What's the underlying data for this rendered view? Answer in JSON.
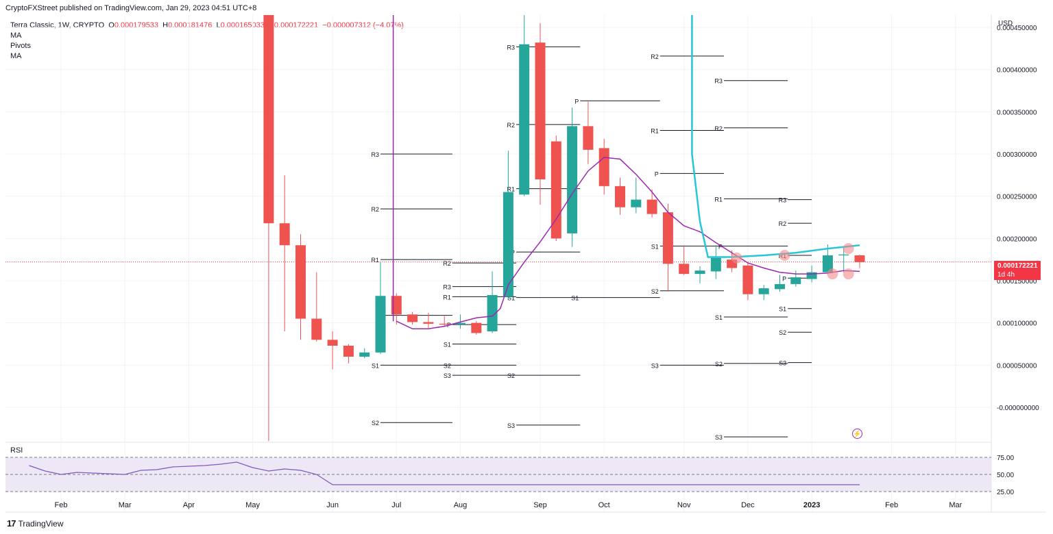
{
  "header": {
    "publisher_line": "CryptoFXStreet published on TradingView.com, Jan 29, 2023 04:51 UTC+8"
  },
  "legend": {
    "symbol": "Terra Classic, 1W, CRYPTO",
    "o_label": "O",
    "o_value": "0.000179533",
    "h_label": "H",
    "h_value": "0.000181476",
    "l_label": "L",
    "l_value": "0.000165033",
    "c_label": "C",
    "c_value": "0.000172221",
    "change": "−0.000007312 (−4.07%)",
    "indicators": [
      "MA",
      "Pivots",
      "MA"
    ]
  },
  "price_axis": {
    "currency": "USD",
    "last_price": "0.000172221",
    "countdown": "1d 4h"
  },
  "rsi": {
    "title": "RSI",
    "ticks": [
      "75.00",
      "50.00",
      "25.00"
    ]
  },
  "footer": {
    "brand": "TradingView"
  },
  "colors": {
    "up": "#26a69a",
    "down": "#ef5350",
    "ma_purple": "#9c27b0",
    "ma_cyan": "#26c6da",
    "rsi_line": "#7e57c2",
    "rsi_band": "#ede7f6"
  },
  "chart_data": {
    "type": "candlestick",
    "title": "Terra Classic, 1W, CRYPTO",
    "ylabel": "USD",
    "ylim": [
      -4e-05,
      0.00047
    ],
    "y_ticks": [
      "0.000450000",
      "0.000400000",
      "0.000350000",
      "0.000300000",
      "0.000250000",
      "0.000200000",
      "0.000150000",
      "0.000100000",
      "0.000050000",
      "-0.000000000"
    ],
    "y_tick_values": [
      0.00045,
      0.0004,
      0.00035,
      0.0003,
      0.00025,
      0.0002,
      0.00015,
      0.0001,
      5e-05,
      0
    ],
    "x_labels": [
      "Feb",
      "Mar",
      "Apr",
      "May",
      "Jun",
      "Jul",
      "Aug",
      "Sep",
      "Oct",
      "Nov",
      "Dec",
      "2023",
      "Feb",
      "Mar"
    ],
    "x_label_weeks": [
      0,
      4,
      8,
      12,
      17,
      21,
      25,
      30,
      34,
      39,
      43,
      47,
      52,
      56
    ],
    "candles": [
      {
        "w": 13,
        "o": 0.00047,
        "h": 0.00047,
        "l": -4e-05,
        "c": 0.000218
      },
      {
        "w": 14,
        "o": 0.000218,
        "h": 0.000275,
        "l": 9e-05,
        "c": 0.000192
      },
      {
        "w": 15,
        "o": 0.000192,
        "h": 0.000205,
        "l": 8e-05,
        "c": 0.000105
      },
      {
        "w": 16,
        "o": 0.000105,
        "h": 0.00016,
        "l": 7.8e-05,
        "c": 8e-05
      },
      {
        "w": 17,
        "o": 8e-05,
        "h": 9e-05,
        "l": 4.5e-05,
        "c": 7.3e-05
      },
      {
        "w": 18,
        "o": 7.3e-05,
        "h": 7.5e-05,
        "l": 5.2e-05,
        "c": 6e-05
      },
      {
        "w": 19,
        "o": 6e-05,
        "h": 7e-05,
        "l": 5.8e-05,
        "c": 6.5e-05
      },
      {
        "w": 20,
        "o": 6.5e-05,
        "h": 0.000172,
        "l": 6.3e-05,
        "c": 0.000132
      },
      {
        "w": 21,
        "o": 0.000132,
        "h": 0.000135,
        "l": 9.8e-05,
        "c": 0.00011
      },
      {
        "w": 22,
        "o": 0.00011,
        "h": 0.000113,
        "l": 9.8e-05,
        "c": 0.000101
      },
      {
        "w": 23,
        "o": 0.000101,
        "h": 0.000112,
        "l": 9.4e-05,
        "c": 9.9e-05
      },
      {
        "w": 24,
        "o": 9.9e-05,
        "h": 0.000108,
        "l": 9.6e-05,
        "c": 9.8e-05
      },
      {
        "w": 25,
        "o": 9.8e-05,
        "h": 0.00011,
        "l": 9.3e-05,
        "c": 0.0001
      },
      {
        "w": 26,
        "o": 0.0001,
        "h": 0.000102,
        "l": 8.6e-05,
        "c": 8.8e-05
      },
      {
        "w": 27,
        "o": 9e-05,
        "h": 0.000161,
        "l": 8.8e-05,
        "c": 0.000133
      },
      {
        "w": 28,
        "o": 0.000131,
        "h": 0.000304,
        "l": 0.000128,
        "c": 0.000255
      },
      {
        "w": 29,
        "o": 0.000252,
        "h": 0.00047,
        "l": 0.00025,
        "c": 0.00043
      },
      {
        "w": 30,
        "o": 0.000432,
        "h": 0.000455,
        "l": 0.00024,
        "c": 0.00027
      },
      {
        "w": 31,
        "o": 0.000315,
        "h": 0.000322,
        "l": 0.000197,
        "c": 0.0002
      },
      {
        "w": 32,
        "o": 0.000206,
        "h": 0.000355,
        "l": 0.00019,
        "c": 0.000333
      },
      {
        "w": 33,
        "o": 0.000333,
        "h": 0.000362,
        "l": 0.000288,
        "c": 0.000305
      },
      {
        "w": 34,
        "o": 0.000307,
        "h": 0.000318,
        "l": 0.000252,
        "c": 0.000262
      },
      {
        "w": 35,
        "o": 0.000262,
        "h": 0.000272,
        "l": 0.000228,
        "c": 0.000237
      },
      {
        "w": 36,
        "o": 0.000237,
        "h": 0.000272,
        "l": 0.00023,
        "c": 0.000246
      },
      {
        "w": 37,
        "o": 0.000246,
        "h": 0.000258,
        "l": 0.000225,
        "c": 0.000229
      },
      {
        "w": 38,
        "o": 0.000231,
        "h": 0.000241,
        "l": 0.000137,
        "c": 0.00017
      },
      {
        "w": 39,
        "o": 0.00017,
        "h": 0.000192,
        "l": 0.000157,
        "c": 0.000158
      },
      {
        "w": 40,
        "o": 0.000158,
        "h": 0.000167,
        "l": 0.000147,
        "c": 0.000162
      },
      {
        "w": 41,
        "o": 0.000161,
        "h": 0.000192,
        "l": 0.000152,
        "c": 0.000177
      },
      {
        "w": 42,
        "o": 0.000175,
        "h": 0.000186,
        "l": 0.00016,
        "c": 0.000165
      },
      {
        "w": 43,
        "o": 0.000168,
        "h": 0.000171,
        "l": 0.000127,
        "c": 0.000134
      },
      {
        "w": 44,
        "o": 0.000134,
        "h": 0.000145,
        "l": 0.000127,
        "c": 0.000141
      },
      {
        "w": 45,
        "o": 0.00014,
        "h": 0.000157,
        "l": 0.000137,
        "c": 0.000146
      },
      {
        "w": 46,
        "o": 0.000146,
        "h": 0.000162,
        "l": 0.000143,
        "c": 0.000154
      },
      {
        "w": 47,
        "o": 0.000152,
        "h": 0.000168,
        "l": 0.000148,
        "c": 0.00016
      },
      {
        "w": 48,
        "o": 0.00016,
        "h": 0.000193,
        "l": 0.000158,
        "c": 0.00018
      },
      {
        "w": 49,
        "o": 0.00018,
        "h": 0.00019,
        "l": 0.00016,
        "c": 0.000181
      },
      {
        "w": 50,
        "o": 0.00018,
        "h": 0.000181,
        "l": 0.000165,
        "c": 0.000172
      }
    ],
    "ma_purple": [
      [
        21,
        0.000102
      ],
      [
        22,
        9.3e-05
      ],
      [
        23,
        9.3e-05
      ],
      [
        24,
        9.6e-05
      ],
      [
        25,
        0.000101
      ],
      [
        26,
        0.000106
      ],
      [
        27,
        0.000108
      ],
      [
        27.5,
        0.000117
      ],
      [
        28,
        0.000145
      ],
      [
        29,
        0.000172
      ],
      [
        30,
        0.000196
      ],
      [
        31,
        0.000223
      ],
      [
        32,
        0.000253
      ],
      [
        33,
        0.00028
      ],
      [
        34,
        0.000296
      ],
      [
        35,
        0.000294
      ],
      [
        36,
        0.000276
      ],
      [
        37,
        0.000255
      ],
      [
        38,
        0.000231
      ],
      [
        39,
        0.000215
      ],
      [
        40,
        0.000208
      ],
      [
        41,
        0.000195
      ],
      [
        42,
        0.000183
      ],
      [
        43,
        0.000171
      ],
      [
        44,
        0.000165
      ],
      [
        45,
        0.00016
      ],
      [
        46,
        0.000158
      ],
      [
        47,
        0.000158
      ],
      [
        48,
        0.000159
      ],
      [
        49,
        0.000162
      ],
      [
        50,
        0.000161
      ]
    ],
    "ma_cyan": [
      [
        39.5,
        0.00047
      ],
      [
        39.5,
        0.0003
      ],
      [
        40,
        0.00022
      ],
      [
        40.5,
        0.000178
      ],
      [
        42,
        0.000178
      ],
      [
        44,
        0.00018
      ],
      [
        46,
        0.000183
      ],
      [
        48,
        0.000188
      ],
      [
        50,
        0.000192
      ]
    ],
    "pivots": [
      {
        "x0": 20,
        "x1": 24.5,
        "labels": [
          [
            "R3",
            0.0003
          ],
          [
            "R2",
            0.000235
          ],
          [
            "R1",
            0.000175
          ],
          [
            "P",
            0.000109
          ],
          [
            "S1",
            5e-05
          ],
          [
            "S2",
            -1.8e-05
          ]
        ]
      },
      {
        "x0": 24.5,
        "x1": 28.5,
        "labels": [
          [
            "R3",
            0.000143
          ],
          [
            "R2",
            0.000171
          ],
          [
            "R1",
            0.000131
          ],
          [
            "P",
            9.8e-05
          ],
          [
            "S1",
            7.5e-05
          ],
          [
            "S2",
            5e-05
          ],
          [
            "S3",
            3.8e-05
          ]
        ]
      },
      {
        "x0": 28.5,
        "x1": 32.5,
        "labels": [
          [
            "R3",
            0.000427
          ],
          [
            "R2",
            0.000335
          ],
          [
            "R1",
            0.000259
          ],
          [
            "P",
            0.000184
          ],
          [
            "S1",
            0.00013
          ],
          [
            "S2",
            3.8e-05
          ],
          [
            "S3",
            -2.1e-05
          ]
        ]
      },
      {
        "x0": 32.5,
        "x1": 37.5,
        "labels": [
          [
            "P",
            0.000363
          ],
          [
            "S1",
            0.00013
          ]
        ]
      },
      {
        "x0": 37.5,
        "x1": 41.5,
        "labels": [
          [
            "R3",
            0.00047
          ],
          [
            "R2",
            0.000416
          ],
          [
            "R1",
            0.000328
          ],
          [
            "P",
            0.000277
          ],
          [
            "S1",
            0.000191
          ],
          [
            "S2",
            0.000138
          ],
          [
            "S3",
            5e-05
          ]
        ]
      },
      {
        "x0": 41.5,
        "x1": 45.5,
        "labels": [
          [
            "R3",
            0.000387
          ],
          [
            "R2",
            0.000331
          ],
          [
            "R1",
            0.000247
          ],
          [
            "P",
            0.000191
          ],
          [
            "S1",
            0.000107
          ],
          [
            "S2",
            5.2e-05
          ],
          [
            "S3",
            -3.5e-05
          ]
        ]
      },
      {
        "x0": 45.5,
        "x1": 47,
        "labels": [
          [
            "R3",
            0.000246
          ],
          [
            "R2",
            0.000218
          ],
          [
            "R1",
            0.00018
          ],
          [
            "P",
            0.000153
          ],
          [
            "S1",
            0.000117
          ],
          [
            "S2",
            8.9e-05
          ],
          [
            "S3",
            5.3e-05
          ]
        ]
      }
    ],
    "markers": [
      [
        42.3,
        0.000177
      ],
      [
        45.3,
        0.00018
      ],
      [
        48.3,
        0.000158
      ],
      [
        49.3,
        0.000188
      ],
      [
        49.3,
        0.000158
      ]
    ],
    "rsi_values": [
      [
        -2,
        63
      ],
      [
        -1,
        55
      ],
      [
        0,
        50
      ],
      [
        1,
        53
      ],
      [
        2,
        52
      ],
      [
        3,
        51
      ],
      [
        4,
        50
      ],
      [
        5,
        56
      ],
      [
        6,
        57
      ],
      [
        7,
        61
      ],
      [
        8,
        62
      ],
      [
        9,
        63
      ],
      [
        10,
        65
      ],
      [
        11,
        68
      ],
      [
        12,
        60
      ],
      [
        13,
        55
      ],
      [
        14,
        58
      ],
      [
        15,
        56
      ],
      [
        16,
        50
      ],
      [
        17,
        35
      ],
      [
        24,
        35
      ],
      [
        50,
        35
      ]
    ],
    "rsi_ylim": [
      25,
      75
    ]
  }
}
